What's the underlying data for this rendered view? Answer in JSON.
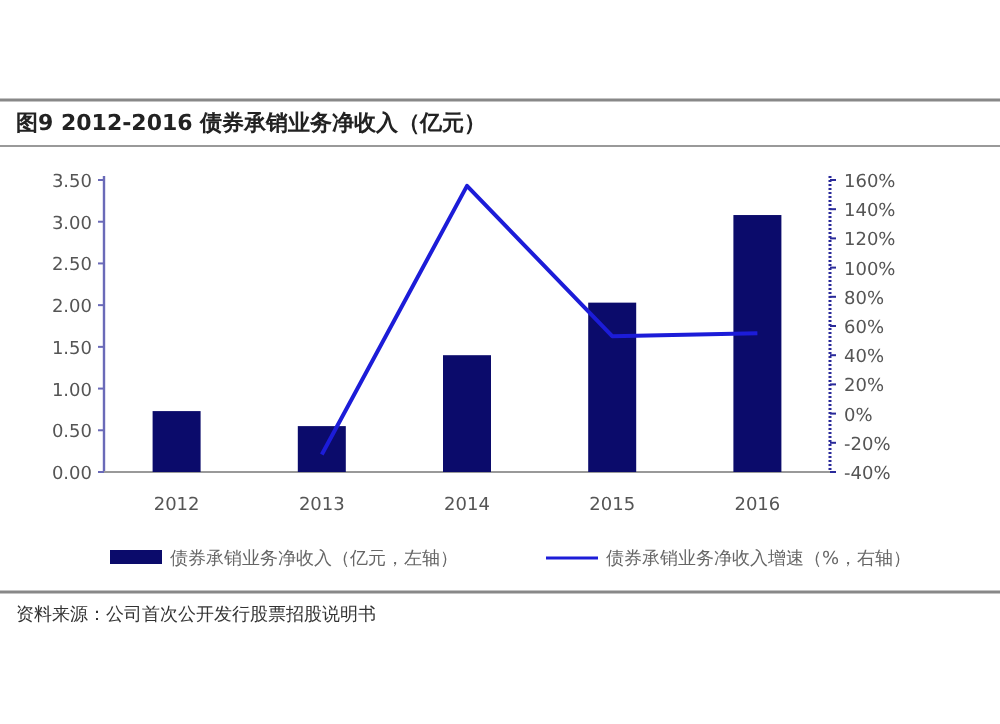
{
  "chart_data": {
    "type": "bar",
    "title": "图9  2012-2016 债券承销业务净收入（亿元）",
    "categories": [
      "2012",
      "2013",
      "2014",
      "2015",
      "2016"
    ],
    "series": [
      {
        "name": "债券承销业务净收入（亿元，左轴）",
        "color": "#0b0b6b",
        "values": [
          0.73,
          0.55,
          1.4,
          2.03,
          3.08
        ]
      },
      {
        "name": "债券承销业务净收入增速（%，右轴）",
        "type": "line",
        "axis": "y2",
        "color": "#1c1cd8",
        "values": [
          null,
          -28,
          156,
          53,
          55
        ]
      }
    ],
    "ylim": [
      0,
      3.5
    ],
    "yticks": [
      {
        "value": 0,
        "label": "0.00"
      },
      {
        "value": 0.5,
        "label": "0.50"
      },
      {
        "value": 1,
        "label": "1.00"
      },
      {
        "value": 1.5,
        "label": "1.50"
      },
      {
        "value": 2,
        "label": "2.00"
      },
      {
        "value": 2.5,
        "label": "2.50"
      },
      {
        "value": 3,
        "label": "3.00"
      },
      {
        "value": 3.5,
        "label": "3.50"
      }
    ],
    "y2lim": [
      -40,
      160
    ],
    "y2ticks": [
      {
        "value": -40,
        "label": "-40%"
      },
      {
        "value": -20,
        "label": "-20%"
      },
      {
        "value": 0,
        "label": "0%"
      },
      {
        "value": 20,
        "label": "20%"
      },
      {
        "value": 40,
        "label": "40%"
      },
      {
        "value": 60,
        "label": "60%"
      },
      {
        "value": 80,
        "label": "80%"
      },
      {
        "value": 100,
        "label": "100%"
      },
      {
        "value": 120,
        "label": "120%"
      },
      {
        "value": 140,
        "label": "140%"
      },
      {
        "value": 160,
        "label": "160%"
      }
    ],
    "legend": "bottom",
    "annotations": [
      "资料来源：公司首次公开发行股票招股说明书"
    ]
  }
}
